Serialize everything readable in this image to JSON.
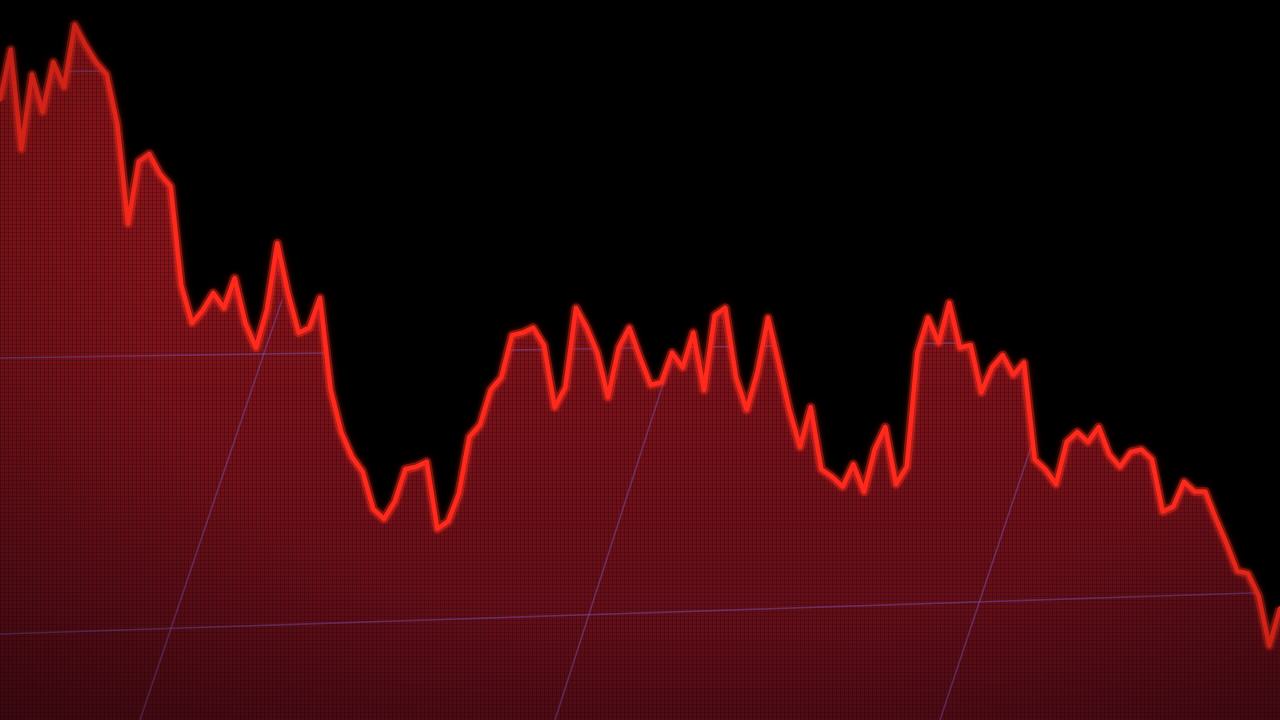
{
  "chart_data": {
    "type": "area",
    "title": "",
    "xlabel": "",
    "ylabel": "",
    "x": [
      0,
      1,
      2,
      3,
      4,
      5,
      6,
      7,
      8,
      9,
      10,
      11,
      12,
      13,
      14,
      15,
      16,
      17,
      18,
      19,
      20,
      21,
      22,
      23,
      24,
      25,
      26,
      27,
      28,
      29,
      30,
      31,
      32,
      33,
      34,
      35,
      36,
      37,
      38,
      39,
      40,
      41,
      42,
      43,
      44,
      45,
      46,
      47,
      48,
      49,
      50,
      51,
      52,
      53,
      54,
      55,
      56,
      57,
      58,
      59,
      60,
      61,
      62,
      63,
      64,
      65,
      66,
      67,
      68,
      69,
      70,
      71,
      72,
      73,
      74,
      75,
      76,
      77,
      78,
      79,
      80,
      81,
      82,
      83,
      84,
      85,
      86,
      87,
      88,
      89,
      90,
      91,
      92,
      93,
      94,
      95,
      96,
      97,
      98,
      99,
      100,
      101,
      102,
      103,
      104,
      105,
      106,
      107,
      108,
      109,
      110,
      111,
      112,
      113,
      114,
      115,
      116,
      117,
      118,
      119,
      120
    ],
    "series": [
      {
        "values": [
          690,
          710,
          670,
          700,
          685,
          705,
          695,
          720,
          712,
          705,
          700,
          680,
          640,
          665,
          668,
          660,
          655,
          615,
          600,
          605,
          612,
          606,
          618,
          600,
          590,
          605,
          632,
          612,
          596,
          598,
          610,
          573,
          556,
          546,
          540,
          525,
          521,
          528,
          541,
          542,
          544,
          517,
          520,
          531,
          554,
          559,
          573,
          578,
          595,
          596,
          598,
          591,
          566,
          574,
          606,
          598,
          588,
          570,
          590,
          598,
          586,
          575,
          576,
          588,
          582,
          596,
          573,
          603,
          606,
          578,
          565,
          580,
          602,
          584,
          565,
          550,
          566,
          541,
          538,
          534,
          543,
          532,
          549,
          558,
          535,
          542,
          588,
          602,
          592,
          608,
          590,
          591,
          572,
          582,
          587,
          579,
          584,
          545,
          541,
          535,
          552,
          556,
          552,
          558,
          547,
          542,
          548,
          549,
          545,
          524,
          526,
          536,
          532,
          532,
          521,
          511,
          500,
          499,
          490,
          470,
          485
        ]
      }
    ],
    "ylim": [
      440,
      730
    ],
    "grid": true,
    "legend": "none",
    "colors": {
      "line": "#ff2a1c",
      "fill_top": "#a1181d",
      "fill_bottom": "#5b0c18",
      "grid": "#7a4a9a",
      "background": "#000000"
    }
  }
}
